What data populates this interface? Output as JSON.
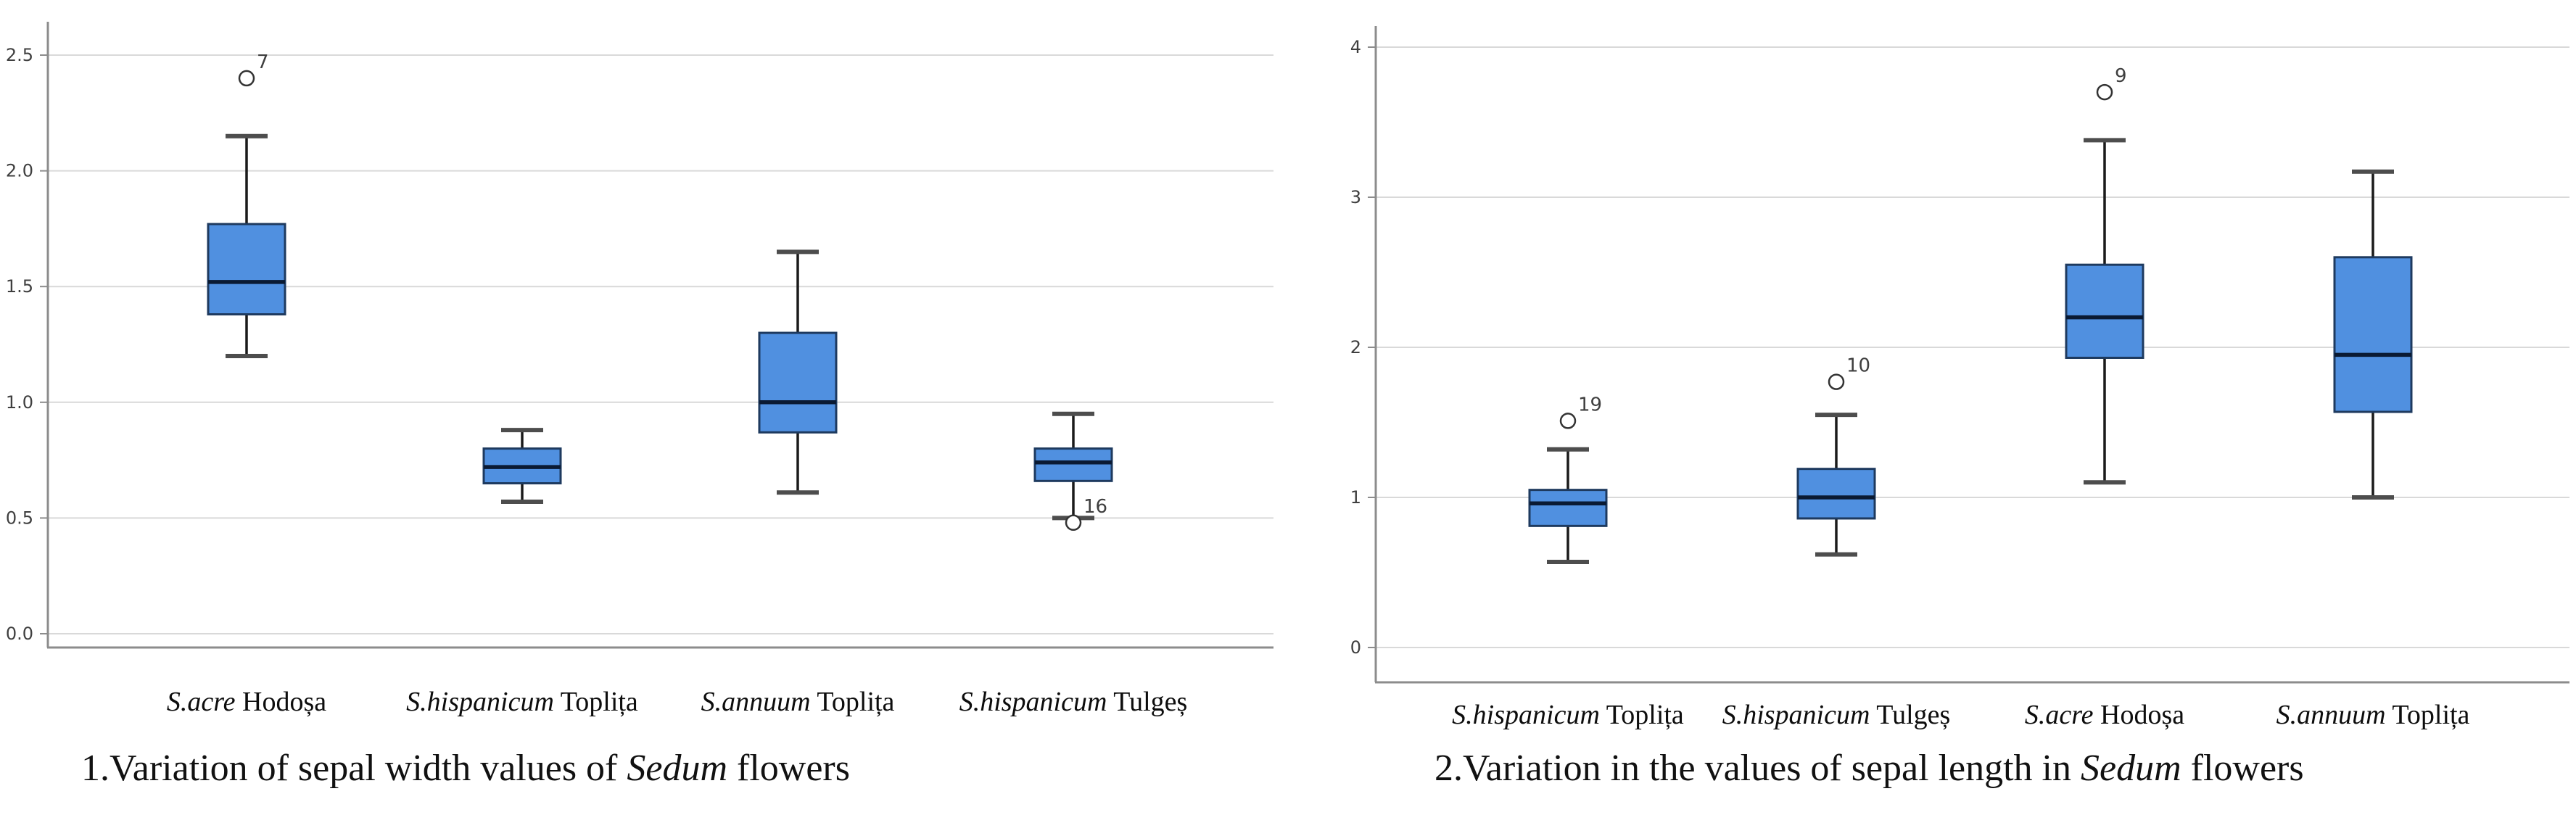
{
  "page": {
    "background": "#FFFFFF"
  },
  "colors": {
    "box_fill": "#5090E0",
    "box_border": "#1E3A5F",
    "median_line": "#0A1A33",
    "whisker_line": "#1A1A1A",
    "whisker_cap": "#4D4D4D",
    "gridline": "#D9D9D9",
    "axis_line": "#8C8C8C",
    "outlier_stroke": "#333333",
    "outlier_fill": "#FFFFFF",
    "tick_label": "#3F3F3F",
    "category_label": "#0D0D0D",
    "caption_text": "#111111"
  },
  "chart_data": [
    {
      "type": "boxplot",
      "title": "1.Variation of sepal width values of Sedum flowers",
      "title_parts": {
        "prefix": "1.Variation of sepal width values of ",
        "italic": "Sedum",
        "suffix": " flowers"
      },
      "xlabel": "",
      "ylabel": "",
      "ylim": [
        0,
        2.5
      ],
      "grid": true,
      "legend": "none",
      "yticks": [
        {
          "value": 0.0,
          "label": "0.0"
        },
        {
          "value": 0.5,
          "label": "0.5"
        },
        {
          "value": 1.0,
          "label": "1.0"
        },
        {
          "value": 1.5,
          "label": "1.5"
        },
        {
          "value": 2.0,
          "label": "2.0"
        },
        {
          "value": 2.5,
          "label": "2.5"
        }
      ],
      "categories": [
        "S.acre Hodoșa",
        "S.hispanicum Toplița",
        "S.annuum Toplița",
        "S.hispanicum Tulgeș"
      ],
      "category_parts": [
        {
          "italic": "S.acre",
          "regular": " Hodoșa"
        },
        {
          "italic": "S.hispanicum",
          "regular": " Toplița"
        },
        {
          "italic": "S.annuum",
          "regular": " Toplița"
        },
        {
          "italic": "S.hispanicum",
          "regular": " Tulgeș"
        }
      ],
      "series": [
        {
          "category": "S.acre Hodoșa",
          "min": 1.2,
          "q1": 1.38,
          "median": 1.52,
          "q3": 1.77,
          "max": 2.15,
          "outliers": [
            {
              "value": 2.4,
              "label": "7"
            }
          ]
        },
        {
          "category": "S.hispanicum Toplița",
          "min": 0.57,
          "q1": 0.65,
          "median": 0.72,
          "q3": 0.8,
          "max": 0.88,
          "outliers": []
        },
        {
          "category": "S.annuum Toplița",
          "min": 0.61,
          "q1": 0.87,
          "median": 1.0,
          "q3": 1.3,
          "max": 1.65,
          "outliers": []
        },
        {
          "category": "S.hispanicum Tulgeș",
          "min": 0.5,
          "q1": 0.66,
          "median": 0.74,
          "q3": 0.8,
          "max": 0.95,
          "outliers": [
            {
              "value": 0.48,
              "label": "16"
            }
          ]
        }
      ]
    },
    {
      "type": "boxplot",
      "title": "2.Variation in the values of sepal length in Sedum flowers",
      "title_parts": {
        "prefix": "2.Variation in the values of sepal length in ",
        "italic": "Sedum",
        "suffix": " flowers"
      },
      "xlabel": "",
      "ylabel": "",
      "ylim": [
        0,
        4
      ],
      "grid": true,
      "legend": "none",
      "yticks": [
        {
          "value": 0,
          "label": "0"
        },
        {
          "value": 1,
          "label": "1"
        },
        {
          "value": 2,
          "label": "2"
        },
        {
          "value": 3,
          "label": "3"
        },
        {
          "value": 4,
          "label": "4"
        }
      ],
      "categories": [
        "S.hispanicum Toplița",
        "S.hispanicum Tulgeș",
        "S.acre Hodoșa",
        "S.annuum Toplița"
      ],
      "category_parts": [
        {
          "italic": "S.hispanicum",
          "regular": " Toplița"
        },
        {
          "italic": "S.hispanicum",
          "regular": " Tulgeș"
        },
        {
          "italic": "S.acre",
          "regular": " Hodoșa"
        },
        {
          "italic": "S.annuum",
          "regular": " Toplița"
        }
      ],
      "series": [
        {
          "category": "S.hispanicum Toplița",
          "min": 0.57,
          "q1": 0.81,
          "median": 0.96,
          "q3": 1.05,
          "max": 1.32,
          "outliers": [
            {
              "value": 1.51,
              "label": "19"
            }
          ]
        },
        {
          "category": "S.hispanicum Tulgeș",
          "min": 0.62,
          "q1": 0.86,
          "median": 1.0,
          "q3": 1.19,
          "max": 1.55,
          "outliers": [
            {
              "value": 1.77,
              "label": "10"
            }
          ]
        },
        {
          "category": "S.acre Hodoșa",
          "min": 1.1,
          "q1": 1.93,
          "median": 2.2,
          "q3": 2.55,
          "max": 3.38,
          "outliers": [
            {
              "value": 3.7,
              "label": "9"
            }
          ]
        },
        {
          "category": "S.annuum Toplița",
          "min": 1.0,
          "q1": 1.57,
          "median": 1.95,
          "q3": 2.6,
          "max": 3.17,
          "outliers": []
        }
      ]
    }
  ]
}
